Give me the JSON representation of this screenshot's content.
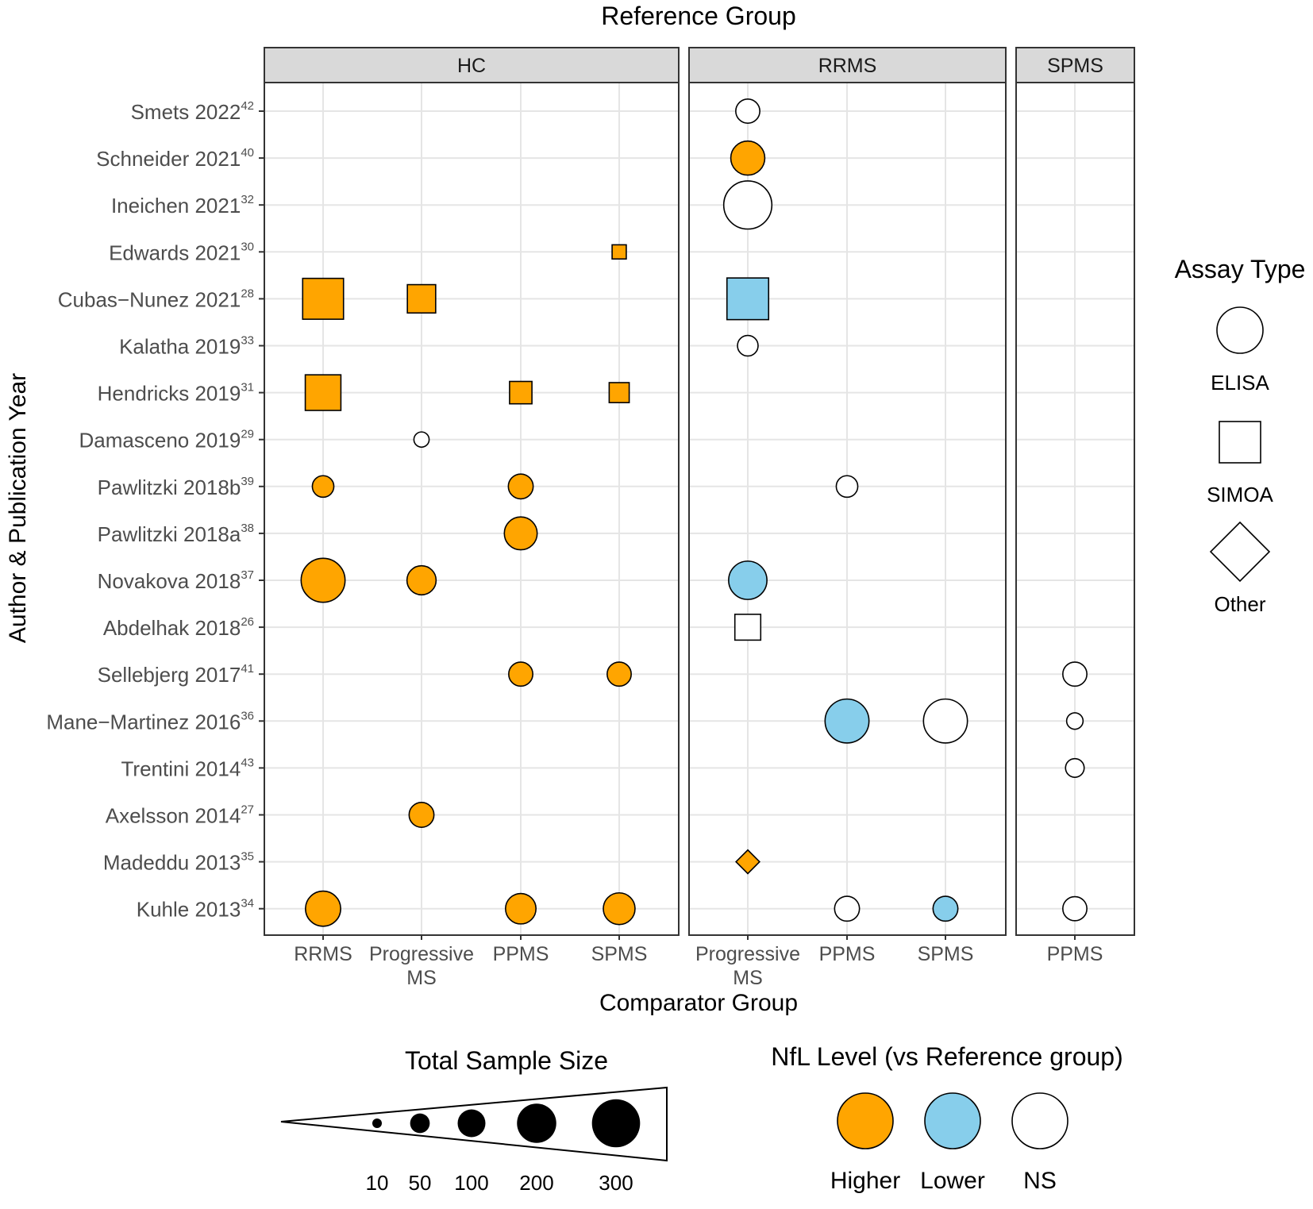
{
  "chart_data": {
    "type": "scatter",
    "title": "Reference Group",
    "xlabel": "Comparator Group",
    "ylabel": "Author & Publication Year",
    "grid": true,
    "studies": [
      {
        "name": "Smets 2022",
        "ref": "42"
      },
      {
        "name": "Schneider 2021",
        "ref": "40"
      },
      {
        "name": "Ineichen 2021",
        "ref": "32"
      },
      {
        "name": "Edwards 2021",
        "ref": "30"
      },
      {
        "name": "Cubas−Nunez 2021",
        "ref": "28"
      },
      {
        "name": "Kalatha 2019",
        "ref": "33"
      },
      {
        "name": "Hendricks 2019",
        "ref": "31"
      },
      {
        "name": "Damasceno 2019",
        "ref": "29"
      },
      {
        "name": "Pawlitzki 2018b",
        "ref": "39"
      },
      {
        "name": "Pawlitzki 2018a",
        "ref": "38"
      },
      {
        "name": "Novakova 2018",
        "ref": "37"
      },
      {
        "name": "Abdelhak 2018",
        "ref": "26"
      },
      {
        "name": "Sellebjerg 2017",
        "ref": "41"
      },
      {
        "name": "Mane−Martinez 2016",
        "ref": "36"
      },
      {
        "name": "Trentini 2014",
        "ref": "43"
      },
      {
        "name": "Axelsson 2014",
        "ref": "27"
      },
      {
        "name": "Madeddu 2013",
        "ref": "35"
      },
      {
        "name": "Kuhle 2013",
        "ref": "34"
      }
    ],
    "panels": [
      {
        "reference": "HC",
        "comparators": [
          [
            "RRMS"
          ],
          [
            "Progressive",
            "MS"
          ],
          [
            "PPMS"
          ],
          [
            "SPMS"
          ]
        ]
      },
      {
        "reference": "RRMS",
        "comparators": [
          [
            "Progressive",
            "MS"
          ],
          [
            "PPMS"
          ],
          [
            "SPMS"
          ]
        ]
      },
      {
        "reference": "SPMS",
        "comparators": [
          [
            "PPMS"
          ]
        ]
      }
    ],
    "points": [
      {
        "panel": 0,
        "comp": 0,
        "study": 4,
        "assay": "SIMOA",
        "nfl": "Higher",
        "n": 250
      },
      {
        "panel": 0,
        "comp": 0,
        "study": 6,
        "assay": "SIMOA",
        "nfl": "Higher",
        "n": 190
      },
      {
        "panel": 0,
        "comp": 0,
        "study": 8,
        "assay": "ELISA",
        "nfl": "Higher",
        "n": 60
      },
      {
        "panel": 0,
        "comp": 0,
        "study": 10,
        "assay": "ELISA",
        "nfl": "Higher",
        "n": 250
      },
      {
        "panel": 0,
        "comp": 0,
        "study": 17,
        "assay": "ELISA",
        "nfl": "Higher",
        "n": 160
      },
      {
        "panel": 0,
        "comp": 1,
        "study": 4,
        "assay": "SIMOA",
        "nfl": "Higher",
        "n": 120
      },
      {
        "panel": 0,
        "comp": 1,
        "study": 7,
        "assay": "ELISA",
        "nfl": "NS",
        "n": 30
      },
      {
        "panel": 0,
        "comp": 1,
        "study": 10,
        "assay": "ELISA",
        "nfl": "Higher",
        "n": 110
      },
      {
        "panel": 0,
        "comp": 1,
        "study": 15,
        "assay": "ELISA",
        "nfl": "Higher",
        "n": 80
      },
      {
        "panel": 0,
        "comp": 2,
        "study": 6,
        "assay": "SIMOA",
        "nfl": "Higher",
        "n": 75
      },
      {
        "panel": 0,
        "comp": 2,
        "study": 8,
        "assay": "ELISA",
        "nfl": "Higher",
        "n": 80
      },
      {
        "panel": 0,
        "comp": 2,
        "study": 9,
        "assay": "ELISA",
        "nfl": "Higher",
        "n": 140
      },
      {
        "panel": 0,
        "comp": 2,
        "study": 12,
        "assay": "ELISA",
        "nfl": "Higher",
        "n": 75
      },
      {
        "panel": 0,
        "comp": 2,
        "study": 17,
        "assay": "ELISA",
        "nfl": "Higher",
        "n": 120
      },
      {
        "panel": 0,
        "comp": 3,
        "study": 3,
        "assay": "SIMOA",
        "nfl": "Higher",
        "n": 30
      },
      {
        "panel": 0,
        "comp": 3,
        "study": 6,
        "assay": "SIMOA",
        "nfl": "Higher",
        "n": 60
      },
      {
        "panel": 0,
        "comp": 3,
        "study": 12,
        "assay": "ELISA",
        "nfl": "Higher",
        "n": 75
      },
      {
        "panel": 0,
        "comp": 3,
        "study": 17,
        "assay": "ELISA",
        "nfl": "Higher",
        "n": 130
      },
      {
        "panel": 1,
        "comp": 0,
        "study": 0,
        "assay": "ELISA",
        "nfl": "NS",
        "n": 75
      },
      {
        "panel": 1,
        "comp": 0,
        "study": 1,
        "assay": "ELISA",
        "nfl": "Higher",
        "n": 150
      },
      {
        "panel": 1,
        "comp": 0,
        "study": 2,
        "assay": "ELISA",
        "nfl": "NS",
        "n": 300
      },
      {
        "panel": 1,
        "comp": 0,
        "study": 4,
        "assay": "SIMOA",
        "nfl": "Lower",
        "n": 260
      },
      {
        "panel": 1,
        "comp": 0,
        "study": 5,
        "assay": "ELISA",
        "nfl": "NS",
        "n": 55
      },
      {
        "panel": 1,
        "comp": 0,
        "study": 10,
        "assay": "ELISA",
        "nfl": "Lower",
        "n": 190
      },
      {
        "panel": 1,
        "comp": 0,
        "study": 11,
        "assay": "SIMOA",
        "nfl": "NS",
        "n": 100
      },
      {
        "panel": 1,
        "comp": 0,
        "study": 16,
        "assay": "Other",
        "nfl": "Higher",
        "n": 50
      },
      {
        "panel": 1,
        "comp": 1,
        "study": 8,
        "assay": "ELISA",
        "nfl": "NS",
        "n": 60
      },
      {
        "panel": 1,
        "comp": 1,
        "study": 13,
        "assay": "ELISA",
        "nfl": "Lower",
        "n": 250
      },
      {
        "panel": 1,
        "comp": 1,
        "study": 17,
        "assay": "ELISA",
        "nfl": "NS",
        "n": 80
      },
      {
        "panel": 1,
        "comp": 2,
        "study": 13,
        "assay": "ELISA",
        "nfl": "NS",
        "n": 250
      },
      {
        "panel": 1,
        "comp": 2,
        "study": 17,
        "assay": "ELISA",
        "nfl": "Lower",
        "n": 80
      },
      {
        "panel": 2,
        "comp": 0,
        "study": 12,
        "assay": "ELISA",
        "nfl": "NS",
        "n": 75
      },
      {
        "panel": 2,
        "comp": 0,
        "study": 13,
        "assay": "ELISA",
        "nfl": "NS",
        "n": 35
      },
      {
        "panel": 2,
        "comp": 0,
        "study": 14,
        "assay": "ELISA",
        "nfl": "NS",
        "n": 45
      },
      {
        "panel": 2,
        "comp": 0,
        "study": 17,
        "assay": "ELISA",
        "nfl": "NS",
        "n": 75
      }
    ],
    "legend_assay": {
      "title": "Assay Type",
      "items": [
        "ELISA",
        "SIMOA",
        "Other"
      ]
    },
    "legend_size": {
      "title": "Total Sample Size",
      "values": [
        10,
        50,
        100,
        200,
        300
      ]
    },
    "legend_nfl": {
      "title": "NfL Level (vs Reference group)",
      "items": [
        "Higher",
        "Lower",
        "NS"
      ]
    },
    "colors": {
      "Higher": "#FFA500",
      "Lower": "#87CEEB",
      "NS": "#FFFFFF"
    }
  }
}
